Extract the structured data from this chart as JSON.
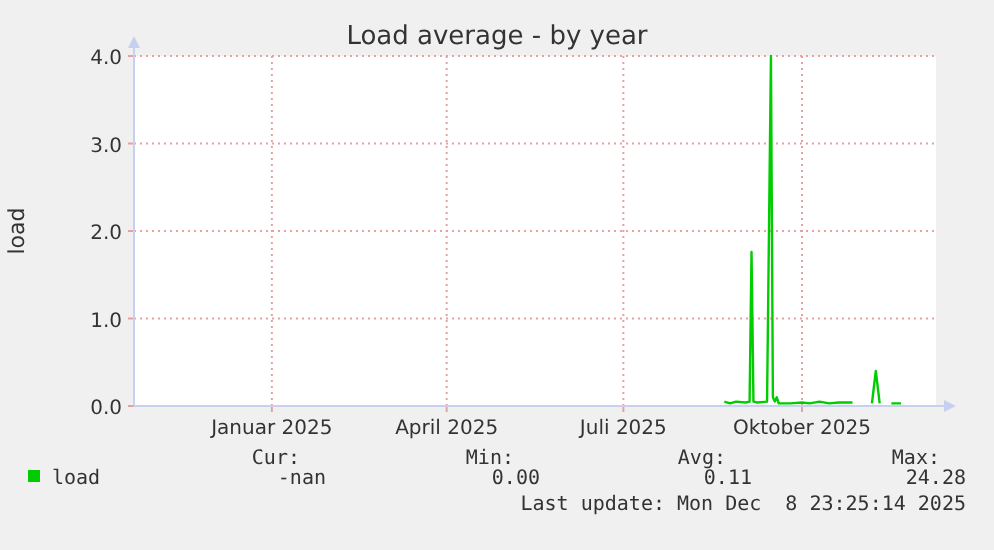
{
  "chart_data": {
    "type": "line",
    "title": "Load average - by year",
    "ylabel": "load",
    "xlim": [
      "2024-10-22",
      "2025-12-09"
    ],
    "xticks": [
      {
        "value": "2025-01-01",
        "label": "Januar 2025"
      },
      {
        "value": "2025-04-01",
        "label": "April 2025"
      },
      {
        "value": "2025-07-01",
        "label": "Juli 2025"
      },
      {
        "value": "2025-10-01",
        "label": "Oktober 2025"
      }
    ],
    "ylim": [
      0,
      4
    ],
    "yticks": [
      {
        "value": 0,
        "label": "0.0"
      },
      {
        "value": 1,
        "label": "1.0"
      },
      {
        "value": 2,
        "label": "2.0"
      },
      {
        "value": 3,
        "label": "3.0"
      },
      {
        "value": 4,
        "label": "4.0"
      }
    ],
    "grid": true,
    "legend": "bottom left",
    "marker": "none",
    "line_style": "solid",
    "x": [
      "2025-08-22",
      "2025-08-25",
      "2025-08-28",
      "2025-09-02",
      "2025-09-04",
      "2025-09-05",
      "2025-09-06",
      "2025-09-08",
      "2025-09-13",
      "2025-09-15",
      "2025-09-16",
      "2025-09-17",
      "2025-09-18",
      "2025-09-19",
      "2025-09-25",
      "2025-10-01",
      "2025-10-05",
      "2025-10-10",
      "2025-10-15",
      "2025-10-20",
      "2025-10-27",
      "2025-10-30",
      "2025-11-06",
      "2025-11-08",
      "2025-11-10",
      "2025-11-13",
      "2025-11-16",
      "2025-11-21"
    ],
    "series": [
      {
        "name": "load",
        "color": "#00cc00",
        "values": [
          0.05,
          0.03,
          0.05,
          0.04,
          0.05,
          1.76,
          0.05,
          0.04,
          0.05,
          4.0,
          0.1,
          0.05,
          0.1,
          0.03,
          0.03,
          0.04,
          0.03,
          0.05,
          0.03,
          0.04,
          0.04,
          null,
          0.03,
          0.4,
          0.03,
          null,
          0.03,
          0.03
        ]
      }
    ],
    "annotations": [
      "Cur:",
      "Min:",
      "Avg:",
      "Max:",
      "-nan",
      "0.00",
      "0.11",
      "24.28",
      "Last update: Mon Dec  8 23:25:14 2025"
    ]
  }
}
